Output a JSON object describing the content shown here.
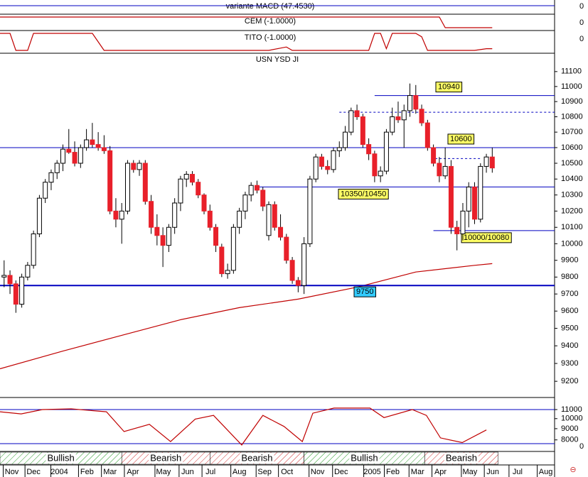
{
  "panels": [
    {
      "label": "variante MACD (47.4530)",
      "zero_label": "0"
    },
    {
      "label": "CEM (-1.0000)",
      "zero_label": "0",
      "ylim": [
        -1,
        1
      ],
      "color": "#c00000",
      "x": [
        -0.7,
        74,
        75,
        83
      ],
      "values": [
        1,
        1,
        -1,
        -1
      ]
    },
    {
      "label": "TITO (-1.0000)",
      "zero_label": "0",
      "ylim": [
        -1,
        1
      ],
      "color": "#c00000",
      "x": [
        -0.7,
        1,
        2,
        4,
        5,
        15,
        17,
        45,
        48,
        49,
        62,
        63,
        64,
        65,
        66,
        70,
        71,
        72,
        73,
        80,
        82,
        83
      ],
      "values": [
        1,
        1,
        -1,
        -1,
        1,
        1,
        -1,
        -1,
        -0.6,
        -1,
        -1,
        1,
        1,
        -0.8,
        1,
        1,
        0.6,
        -1,
        -1,
        -1,
        -0.8,
        -0.8
      ]
    }
  ],
  "chart_data": {
    "type": "candlestick",
    "title": "USN YSD JI",
    "log": true,
    "up_color": "#ffffff",
    "down_color": "#e8202a",
    "open": [
      9800,
      9810,
      9760,
      9640,
      9800,
      9870,
      10060,
      10280,
      10380,
      10440,
      10500,
      10590,
      10570,
      10500,
      10600,
      10650,
      10620,
      10600,
      10580,
      10200,
      10150,
      10200,
      10500,
      10460,
      10500,
      10260,
      10100,
      10050,
      9990,
      10100,
      10250,
      10400,
      10430,
      10380,
      10300,
      10200,
      10100,
      9980,
      9820,
      9840,
      10100,
      10200,
      10300,
      10360,
      10330,
      10050,
      10240,
      10100,
      10040,
      9900,
      9780,
      9750,
      10000,
      10400,
      10540,
      10480,
      10460,
      10580,
      10600,
      10700,
      10840,
      10800,
      10620,
      10560,
      10420,
      10450,
      10700,
      10800,
      10780,
      10840,
      10940,
      10850,
      10760,
      10600,
      10500,
      10420,
      10480,
      10100,
      10060,
      10200,
      10350,
      10150,
      10480,
      10540
    ],
    "high": [
      9900,
      9840,
      9780,
      9820,
      9890,
      10080,
      10300,
      10400,
      10460,
      10520,
      10620,
      10720,
      10640,
      10620,
      10720,
      10760,
      10700,
      10680,
      10610,
      10280,
      10250,
      10520,
      10520,
      10520,
      10520,
      10300,
      10180,
      10100,
      10120,
      10280,
      10420,
      10450,
      10450,
      10400,
      10310,
      10240,
      10120,
      10000,
      9880,
      10120,
      10220,
      10320,
      10380,
      10390,
      10350,
      10260,
      10260,
      10180,
      10060,
      9920,
      9800,
      10040,
      10420,
      10560,
      10560,
      10520,
      10600,
      10640,
      10740,
      10860,
      10880,
      10820,
      10660,
      10580,
      10480,
      10720,
      10860,
      10900,
      10880,
      11020,
      11010,
      10880,
      10780,
      10620,
      10540,
      10600,
      10520,
      10140,
      10250,
      10380,
      10380,
      10500,
      10560,
      10600
    ],
    "low": [
      9740,
      9700,
      9590,
      9620,
      9780,
      9850,
      10040,
      10250,
      10330,
      10400,
      10450,
      10560,
      10480,
      10470,
      10580,
      10600,
      10580,
      10560,
      10180,
      10100,
      10000,
      10180,
      10440,
      10420,
      10240,
      10060,
      9990,
      9860,
      9950,
      10060,
      10200,
      10350,
      10360,
      10280,
      10180,
      10080,
      9950,
      9800,
      9790,
      9820,
      10060,
      10150,
      10260,
      10310,
      10200,
      10020,
      10080,
      10020,
      9880,
      9760,
      9710,
      9700,
      9980,
      10380,
      10460,
      10430,
      10440,
      10540,
      10580,
      10680,
      10780,
      10600,
      10520,
      10380,
      10380,
      10430,
      10680,
      10760,
      10600,
      10800,
      10820,
      10740,
      10580,
      10480,
      10380,
      10400,
      10060,
      9960,
      10020,
      10100,
      10120,
      10130,
      10440,
      10440
    ],
    "close": [
      9810,
      9760,
      9640,
      9800,
      9870,
      10060,
      10280,
      10380,
      10440,
      10500,
      10590,
      10570,
      10500,
      10600,
      10650,
      10620,
      10600,
      10580,
      10200,
      10150,
      10200,
      10500,
      10460,
      10500,
      10260,
      10100,
      10050,
      9990,
      10100,
      10250,
      10400,
      10430,
      10380,
      10300,
      10200,
      10100,
      9990,
      9820,
      9840,
      10100,
      10200,
      10300,
      10360,
      10330,
      10230,
      10240,
      10100,
      10040,
      9900,
      9780,
      9750,
      10000,
      10400,
      10540,
      10480,
      10460,
      10580,
      10600,
      10700,
      10840,
      10800,
      10620,
      10560,
      10420,
      10450,
      10700,
      10800,
      10780,
      10840,
      10940,
      10850,
      10760,
      10600,
      10500,
      10420,
      10480,
      10100,
      10060,
      10200,
      10350,
      10150,
      10480,
      10540,
      10470
    ],
    "xlim": [
      -0.7,
      93.6
    ],
    "xticks": [
      {
        "value": 1.3,
        "label": "Nov"
      },
      {
        "value": 5,
        "label": "Dec"
      },
      {
        "value": 9.4,
        "label": "2004"
      },
      {
        "value": 14.1,
        "label": "Feb"
      },
      {
        "value": 18,
        "label": "Mar"
      },
      {
        "value": 21.9,
        "label": "Apr"
      },
      {
        "value": 27.1,
        "label": "May"
      },
      {
        "value": 31.2,
        "label": "Jun"
      },
      {
        "value": 35.1,
        "label": "Jul"
      },
      {
        "value": 40,
        "label": "Aug"
      },
      {
        "value": 44.3,
        "label": "Sep"
      },
      {
        "value": 48.1,
        "label": "Oct"
      },
      {
        "value": 53.3,
        "label": "Nov"
      },
      {
        "value": 57.3,
        "label": "Dec"
      },
      {
        "value": 62.6,
        "label": "2005"
      },
      {
        "value": 66.1,
        "label": "Feb"
      },
      {
        "value": 70.3,
        "label": "Mar"
      },
      {
        "value": 74.2,
        "label": "Apr"
      },
      {
        "value": 79.2,
        "label": "May"
      },
      {
        "value": 83.1,
        "label": "Jun"
      },
      {
        "value": 87.3,
        "label": "Jul"
      },
      {
        "value": 92.1,
        "label": "Aug"
      }
    ],
    "ylim": [
      9110,
      11200
    ],
    "yticks": [
      9200,
      9300,
      9400,
      9500,
      9600,
      9700,
      9800,
      9900,
      10000,
      10100,
      10200,
      10300,
      10400,
      10500,
      10600,
      10700,
      10800,
      10900,
      11000,
      11100
    ],
    "lines": [
      {
        "color": "#c00000",
        "x": [
          -0.7,
          10,
          20,
          30,
          40,
          50,
          60,
          70,
          80,
          83
        ],
        "values": [
          9270,
          9370,
          9460,
          9550,
          9620,
          9670,
          9740,
          9830,
          9870,
          9880
        ]
      }
    ],
    "levels": [
      {
        "value": 10940,
        "label": "10940",
        "from": 63,
        "color": "#0000c0",
        "label_color": "#ffff66"
      },
      {
        "value": 10600,
        "label": "10600",
        "color": "#0000c0",
        "label_color": "#ffff66"
      },
      {
        "value": 10350,
        "label": "10350/10450",
        "from": 43.3,
        "color": "#0000c0",
        "label_color": "#ffff66"
      },
      {
        "value": 10080,
        "label": "10000/10080",
        "from": 73,
        "color": "#0000c0",
        "label_color": "#ffff66"
      },
      {
        "value": 9750,
        "label": "9750",
        "color": "#0000c0",
        "label_color": "#33ccff",
        "bold": true
      },
      {
        "value": 10830,
        "from": 57,
        "color": "#0000c0",
        "dashed": true
      },
      {
        "value": 10530,
        "from": 73.3,
        "to": 81,
        "color": "#0000c0",
        "dashed": true
      }
    ],
    "lower": {
      "log": true,
      "ylim": [
        7300,
        12300
      ],
      "yticks": [
        11000,
        10000,
        9000,
        8000
      ],
      "zero_label": "0",
      "lines": [
        {
          "color": "#c00000",
          "x": [
            -0.7,
            2.9,
            6.5,
            11.4,
            17.4,
            20.4,
            24.7,
            28.3,
            32.5,
            35.6,
            40.4,
            44,
            47.6,
            50.7,
            52.5,
            56.1,
            62.2,
            64.6,
            69.4,
            71.8,
            74.2,
            77.9,
            82
          ],
          "values": [
            10750,
            10510,
            11000,
            11085,
            10750,
            8730,
            9420,
            7860,
            9950,
            10350,
            7580,
            10350,
            9210,
            7860,
            10590,
            11170,
            11170,
            10110,
            11000,
            10350,
            8170,
            7780,
            8880
          ]
        }
      ],
      "bands": [
        {
          "label": "Bullish",
          "from": -0.7,
          "to": 20,
          "color": "#2a9a2a"
        },
        {
          "label": "Bearish",
          "from": 20,
          "to": 35,
          "color": "#d03030"
        },
        {
          "label": "Bearish",
          "from": 35,
          "to": 51,
          "color": "#d03030"
        },
        {
          "label": "Bullish",
          "from": 51,
          "to": 71.5,
          "color": "#2a9a2a"
        },
        {
          "label": "Bearish",
          "from": 71.5,
          "to": 84,
          "color": "#d03030"
        }
      ]
    }
  }
}
